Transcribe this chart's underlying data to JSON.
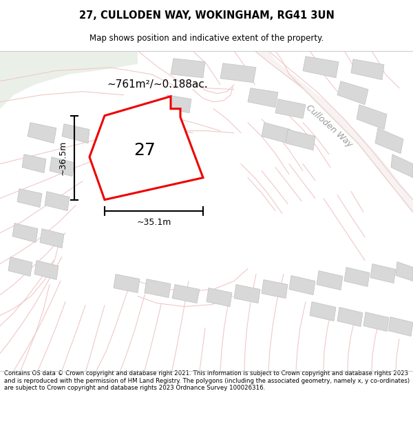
{
  "title_line1": "27, CULLODEN WAY, WOKINGHAM, RG41 3UN",
  "title_line2": "Map shows position and indicative extent of the property.",
  "footer_text": "Contains OS data © Crown copyright and database right 2021. This information is subject to Crown copyright and database rights 2023 and is reproduced with the permission of HM Land Registry. The polygons (including the associated geometry, namely x, y co-ordinates) are subject to Crown copyright and database rights 2023 Ordnance Survey 100026316.",
  "area_label": "~761m²/~0.188ac.",
  "number_label": "27",
  "dim_height": "~36.5m",
  "dim_width": "~35.1m",
  "street_label": "Culloden Way",
  "plot_fill_color": "#ffffff",
  "plot_outline_color": "#ee0000",
  "road_color": "#f0c8c8",
  "building_color": "#d8d8d8",
  "building_outline_color": "#c0c0c0",
  "map_bg": "#f8f5f5",
  "green_area_color": "#eaf0e8",
  "road_fill_color": "#f5efef"
}
